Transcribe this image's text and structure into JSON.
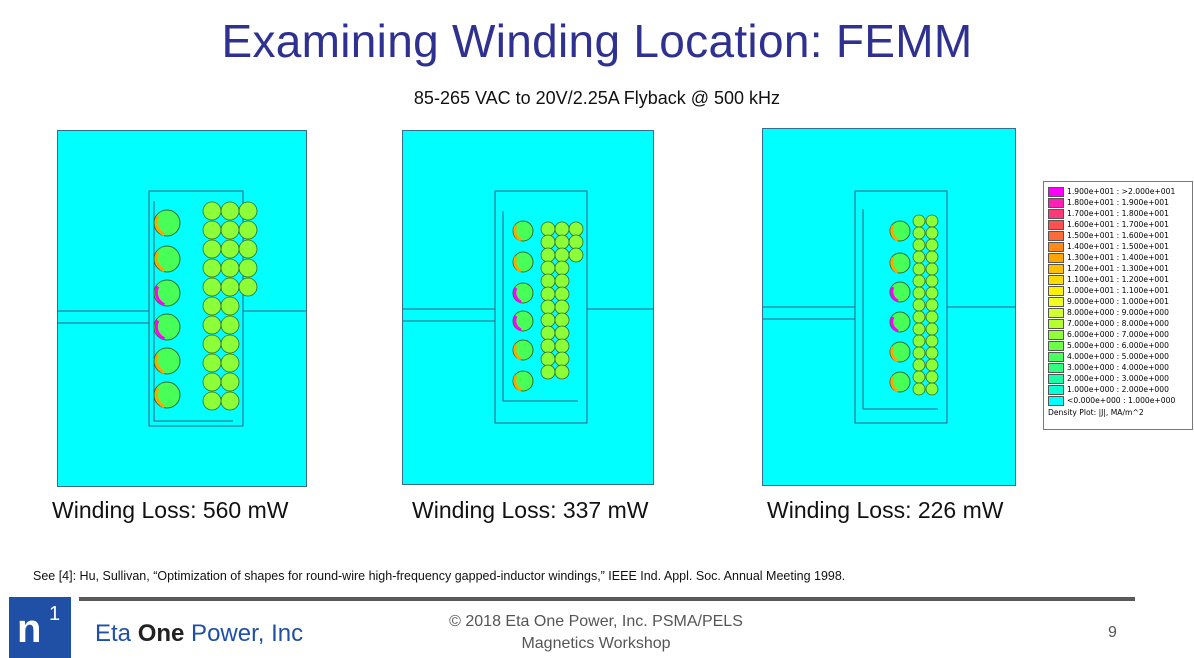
{
  "slide": {
    "title": "Examining Winding Location: FEMM",
    "subtitle": "85-265 VAC to 20V/2.25A Flyback @ 500 kHz",
    "panels": [
      {
        "loss_label": "Winding Loss: 560 mW"
      },
      {
        "loss_label": "Winding Loss: 337 mW"
      },
      {
        "loss_label": "Winding Loss: 226 mW"
      }
    ],
    "reference": "See [4]: Hu, Sullivan, “Optimization of shapes for round-wire high-frequency gapped-inductor windings,” IEEE Ind. Appl. Soc. Annual Meeting 1998.",
    "footer": {
      "logo_letter": "n",
      "logo_superscript": "1",
      "company_part1": "Eta ",
      "company_part2": "One",
      "company_part3": " Power, Inc",
      "copyright_line1": "© 2018 Eta One Power, Inc. PSMA/PELS",
      "copyright_line2": "Magnetics Workshop",
      "page_number": "9"
    }
  },
  "legend": {
    "caption": "Density Plot: |J|, MA/m^2",
    "entries": [
      {
        "label": "1.900e+001 : >2.000e+001",
        "color": "#ff00ff"
      },
      {
        "label": "1.800e+001 : 1.900e+001",
        "color": "#ff1fb4"
      },
      {
        "label": "1.700e+001 : 1.800e+001",
        "color": "#ff3a7a"
      },
      {
        "label": "1.600e+001 : 1.700e+001",
        "color": "#ff5050"
      },
      {
        "label": "1.500e+001 : 1.600e+001",
        "color": "#ff6a3a"
      },
      {
        "label": "1.400e+001 : 1.500e+001",
        "color": "#ff8a1a"
      },
      {
        "label": "1.300e+001 : 1.400e+001",
        "color": "#ffa500"
      },
      {
        "label": "1.200e+001 : 1.300e+001",
        "color": "#ffc000"
      },
      {
        "label": "1.100e+001 : 1.200e+001",
        "color": "#ffdc00"
      },
      {
        "label": "1.000e+001 : 1.100e+001",
        "color": "#fff200"
      },
      {
        "label": "9.000e+000 : 1.000e+001",
        "color": "#f0ff20"
      },
      {
        "label": "8.000e+000 : 9.000e+000",
        "color": "#d4ff30"
      },
      {
        "label": "7.000e+000 : 8.000e+000",
        "color": "#b4ff30"
      },
      {
        "label": "6.000e+000 : 7.000e+000",
        "color": "#90ff38"
      },
      {
        "label": "5.000e+000 : 6.000e+000",
        "color": "#6cff48"
      },
      {
        "label": "4.000e+000 : 5.000e+000",
        "color": "#4cff60"
      },
      {
        "label": "3.000e+000 : 4.000e+000",
        "color": "#30ff80"
      },
      {
        "label": "2.000e+000 : 3.000e+000",
        "color": "#18ffa8"
      },
      {
        "label": "1.000e+000 : 2.000e+000",
        "color": "#08ffd4"
      },
      {
        "label": "<0.000e+000 : 1.000e+000",
        "color": "#00ffff"
      }
    ]
  }
}
